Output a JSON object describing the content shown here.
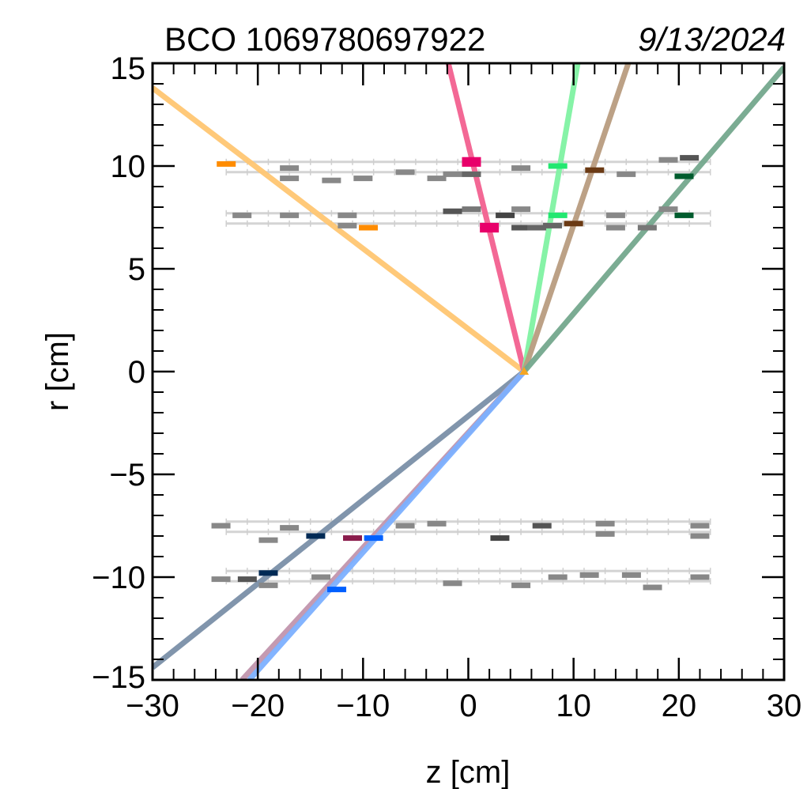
{
  "chart_data": {
    "type": "line",
    "title_left": "BCO 1069780697922",
    "title_right": "9/13/2024",
    "xlabel": "z [cm]",
    "ylabel": "r [cm]",
    "xlim": [
      -30,
      30
    ],
    "ylim": [
      -15,
      15
    ],
    "x_ticks": [
      -30,
      -20,
      -10,
      0,
      10,
      20,
      30
    ],
    "x_tick_labels": [
      "−30",
      "−20",
      "−10",
      "0",
      "10",
      "20",
      "30"
    ],
    "y_ticks": [
      -15,
      -10,
      -5,
      0,
      5,
      10,
      15
    ],
    "y_tick_labels": [
      "−15",
      "−10",
      "−5",
      "0",
      "5",
      "10",
      "15"
    ],
    "grid": false,
    "vertex": {
      "z": 5.3,
      "r": 0
    },
    "tracks": [
      {
        "color": "#ffc672",
        "points": [
          [
            5.3,
            0
          ],
          [
            -30,
            13.8
          ]
        ]
      },
      {
        "color": "#f2608f",
        "points": [
          [
            5.3,
            0
          ],
          [
            -1.9,
            15
          ]
        ]
      },
      {
        "color": "#7ff2a2",
        "points": [
          [
            5.3,
            0
          ],
          [
            10.4,
            15
          ]
        ]
      },
      {
        "color": "#b89c80",
        "points": [
          [
            5.3,
            0
          ],
          [
            15.2,
            15
          ]
        ]
      },
      {
        "color": "#74a88d",
        "points": [
          [
            5.3,
            0
          ],
          [
            30,
            14.8
          ]
        ]
      },
      {
        "color": "#7a8fa8",
        "points": [
          [
            5.3,
            0
          ],
          [
            -30,
            -14.4
          ]
        ]
      },
      {
        "color": "#c195ad",
        "points": [
          [
            5.3,
            0
          ],
          [
            -21.5,
            -15
          ]
        ]
      },
      {
        "color": "#7cb0ff",
        "points": [
          [
            5.3,
            0
          ],
          [
            -20.8,
            -15
          ]
        ]
      }
    ],
    "ladder_layers": [
      {
        "r": 10.2
      },
      {
        "r": 9.7
      },
      {
        "r": 7.7
      },
      {
        "r": 7.2
      },
      {
        "r": -7.3
      },
      {
        "r": -7.8
      },
      {
        "r": -9.7
      },
      {
        "r": -10.2
      }
    ],
    "ladder_z_range": [
      -23,
      23
    ],
    "hits_gray": [
      {
        "z": -17,
        "r": 9.9,
        "shade": "#888888"
      },
      {
        "z": -17,
        "r": 9.4,
        "shade": "#888888"
      },
      {
        "z": -13,
        "r": 9.3,
        "shade": "#888888"
      },
      {
        "z": -10,
        "r": 9.4,
        "shade": "#888888"
      },
      {
        "z": -6,
        "r": 9.7,
        "shade": "#888888"
      },
      {
        "z": -3,
        "r": 9.4,
        "shade": "#888888"
      },
      {
        "z": -1.5,
        "r": 9.6,
        "shade": "#888888"
      },
      {
        "z": 0.3,
        "r": 9.6,
        "shade": "#666666"
      },
      {
        "z": 5,
        "r": 9.9,
        "shade": "#888888"
      },
      {
        "z": 15,
        "r": 9.6,
        "shade": "#888888"
      },
      {
        "z": 19,
        "r": 10.3,
        "shade": "#888888"
      },
      {
        "z": 21,
        "r": 10.4,
        "shade": "#555555"
      },
      {
        "z": -21.5,
        "r": 7.6,
        "shade": "#888888"
      },
      {
        "z": -17,
        "r": 7.6,
        "shade": "#888888"
      },
      {
        "z": -11.5,
        "r": 7.6,
        "shade": "#888888"
      },
      {
        "z": -11.5,
        "r": 7.1,
        "shade": "#888888"
      },
      {
        "z": -1.5,
        "r": 7.8,
        "shade": "#555555"
      },
      {
        "z": 0.3,
        "r": 7.9,
        "shade": "#777777"
      },
      {
        "z": 3.5,
        "r": 7.6,
        "shade": "#444444"
      },
      {
        "z": 5,
        "r": 7.9,
        "shade": "#888888"
      },
      {
        "z": 5,
        "r": 7.0,
        "shade": "#555555"
      },
      {
        "z": 6.5,
        "r": 7.0,
        "shade": "#666666"
      },
      {
        "z": 8,
        "r": 7.1,
        "shade": "#666666"
      },
      {
        "z": 14,
        "r": 7.6,
        "shade": "#888888"
      },
      {
        "z": 14,
        "r": 7.0,
        "shade": "#888888"
      },
      {
        "z": 17,
        "r": 7.0,
        "shade": "#777777"
      },
      {
        "z": 19,
        "r": 7.9,
        "shade": "#888888"
      },
      {
        "z": -23.5,
        "r": -7.5,
        "shade": "#888888"
      },
      {
        "z": -19,
        "r": -8.2,
        "shade": "#888888"
      },
      {
        "z": -17,
        "r": -7.6,
        "shade": "#888888"
      },
      {
        "z": -6,
        "r": -7.5,
        "shade": "#888888"
      },
      {
        "z": -3,
        "r": -7.4,
        "shade": "#888888"
      },
      {
        "z": 3,
        "r": -8.1,
        "shade": "#444444"
      },
      {
        "z": 7,
        "r": -7.5,
        "shade": "#555555"
      },
      {
        "z": 13,
        "r": -7.4,
        "shade": "#888888"
      },
      {
        "z": 13,
        "r": -7.9,
        "shade": "#888888"
      },
      {
        "z": 22,
        "r": -7.5,
        "shade": "#888888"
      },
      {
        "z": 22,
        "r": -8.0,
        "shade": "#888888"
      },
      {
        "z": -23.5,
        "r": -10.1,
        "shade": "#888888"
      },
      {
        "z": -21,
        "r": -10.1,
        "shade": "#555555"
      },
      {
        "z": -19,
        "r": -10.4,
        "shade": "#888888"
      },
      {
        "z": -14,
        "r": -10.0,
        "shade": "#888888"
      },
      {
        "z": -1.5,
        "r": -10.3,
        "shade": "#888888"
      },
      {
        "z": 5,
        "r": -10.4,
        "shade": "#888888"
      },
      {
        "z": 8.5,
        "r": -10.0,
        "shade": "#888888"
      },
      {
        "z": 11.5,
        "r": -9.9,
        "shade": "#888888"
      },
      {
        "z": 15.5,
        "r": -9.9,
        "shade": "#888888"
      },
      {
        "z": 17.5,
        "r": -10.5,
        "shade": "#888888"
      },
      {
        "z": 22,
        "r": -10.0,
        "shade": "#888888"
      }
    ],
    "hits_colored": [
      {
        "z": -23,
        "r": 10.1,
        "color": "#ff8c00"
      },
      {
        "z": -9.5,
        "r": 7.0,
        "color": "#ff8c00"
      },
      {
        "z": 0.3,
        "r": 10.3,
        "color": "#e8006a"
      },
      {
        "z": 0.3,
        "r": 10.1,
        "color": "#e8006a"
      },
      {
        "z": 2,
        "r": 7.1,
        "color": "#e8006a"
      },
      {
        "z": 2,
        "r": 6.9,
        "color": "#e8006a"
      },
      {
        "z": 8.5,
        "r": 10.0,
        "color": "#22e870"
      },
      {
        "z": 8.5,
        "r": 7.6,
        "color": "#22e870"
      },
      {
        "z": 12,
        "r": 9.8,
        "color": "#6b3a14"
      },
      {
        "z": 10,
        "r": 7.2,
        "color": "#6b3a14"
      },
      {
        "z": 20.5,
        "r": 9.5,
        "color": "#005c2e"
      },
      {
        "z": 20.5,
        "r": 7.6,
        "color": "#005c2e"
      },
      {
        "z": -14.5,
        "r": -8.0,
        "color": "#002a55"
      },
      {
        "z": -19,
        "r": -9.8,
        "color": "#002a55"
      },
      {
        "z": -11,
        "r": -8.1,
        "color": "#8a1c4c"
      },
      {
        "z": -9,
        "r": -8.1,
        "color": "#0060ff"
      },
      {
        "z": -12.5,
        "r": -10.6,
        "color": "#0060ff"
      }
    ]
  }
}
